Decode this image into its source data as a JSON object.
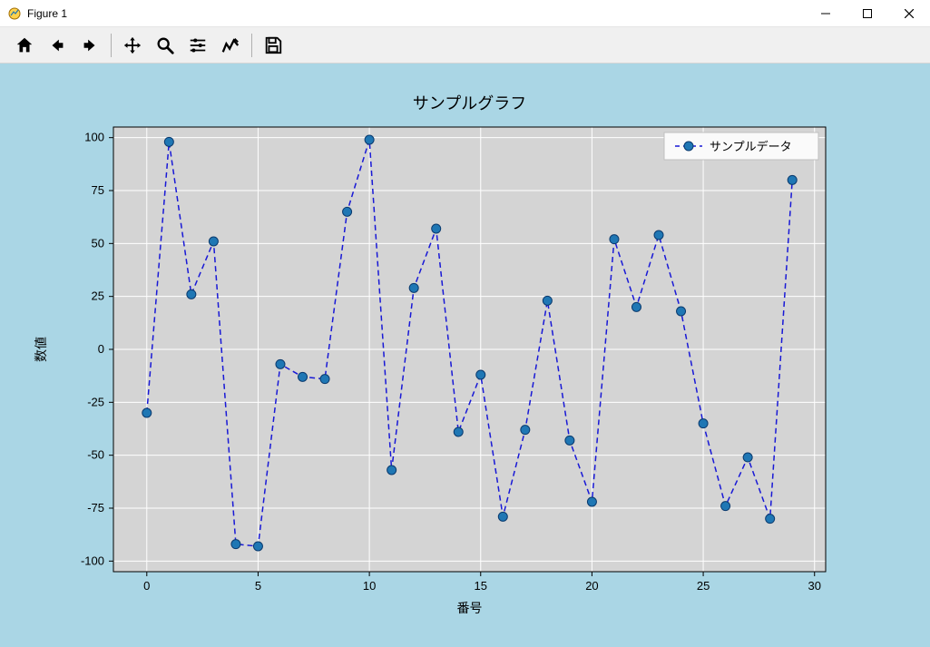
{
  "window": {
    "title": "Figure 1"
  },
  "toolbar": {
    "home": "home-icon",
    "back": "back-icon",
    "forward": "forward-icon",
    "pan": "pan-icon",
    "zoom": "zoom-icon",
    "configure": "configure-icon",
    "edit": "edit-icon",
    "save": "save-icon"
  },
  "chart": {
    "type": "line",
    "title": "サンプルグラフ",
    "title_fontsize": 18,
    "xlabel": "番号",
    "ylabel": "数値",
    "label_fontsize": 14,
    "tick_fontsize": 13,
    "figure_bg": "#aad6e5",
    "plot_bg": "#d4d4d4",
    "grid_color": "#ffffff",
    "grid_width": 1,
    "line_color": "#1818d6",
    "line_style": "dashed",
    "line_width": 1.5,
    "marker_style": "circle",
    "marker_size": 5,
    "marker_face": "#1f77b4",
    "marker_edge": "#0a3a6e",
    "xlim": [
      -1.5,
      30.5
    ],
    "ylim": [
      -105,
      105
    ],
    "xticks": [
      0,
      5,
      10,
      15,
      20,
      25,
      30
    ],
    "yticks": [
      -100,
      -75,
      -50,
      -25,
      0,
      25,
      50,
      75,
      100
    ],
    "legend": {
      "label": "サンプルデータ",
      "position": "upper right"
    },
    "x": [
      0,
      1,
      2,
      3,
      4,
      5,
      6,
      7,
      8,
      9,
      10,
      11,
      12,
      13,
      14,
      15,
      16,
      17,
      18,
      19,
      20,
      21,
      22,
      23,
      24,
      25,
      26,
      27,
      28,
      29
    ],
    "y": [
      -30,
      98,
      26,
      51,
      -92,
      -93,
      -7,
      -13,
      -14,
      65,
      99,
      -57,
      29,
      57,
      -39,
      -12,
      -79,
      -38,
      23,
      -43,
      -72,
      52,
      20,
      54,
      18,
      -35,
      -74,
      -51,
      -80,
      80
    ]
  }
}
